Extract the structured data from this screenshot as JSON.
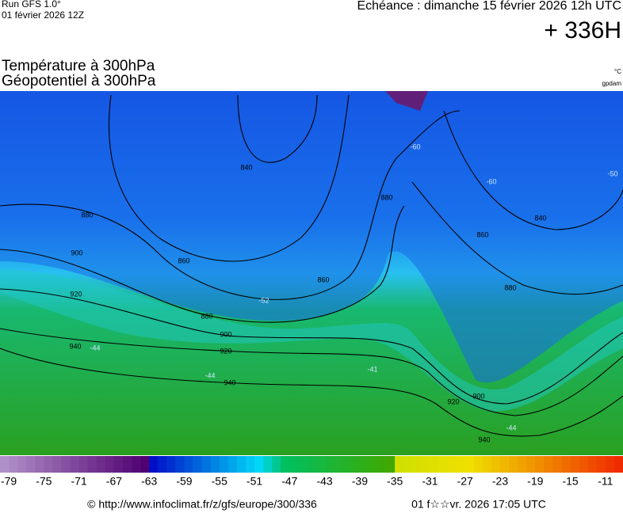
{
  "header": {
    "run": "Run GFS 1.0°",
    "run_date": "01 février 2026 12Z",
    "echeance": "Echéance : dimanche 15 février 2026 12h UTC",
    "lead": "+ 336H",
    "title_1": "Température à 300hPa",
    "title_2": "Géopotentiel à 300hPa",
    "unit_temp": "°C",
    "unit_geo": "gpdam"
  },
  "map": {
    "contour_labels": [
      880,
      900,
      920,
      940,
      860,
      880,
      900,
      920,
      940,
      860,
      880,
      860,
      840,
      900,
      920,
      940,
      840,
      880
    ],
    "temp_labels": [
      -52,
      -44,
      -41,
      -44,
      -60,
      -60,
      -50,
      -44
    ]
  },
  "colorbar": {
    "lim": [
      -80,
      -9
    ],
    "ticks": [
      -79,
      -75,
      -71,
      -67,
      -63,
      -59,
      -55,
      -51,
      -47,
      -43,
      -39,
      -35,
      -31,
      -27,
      -23,
      -19,
      -15,
      -11
    ],
    "color_stops": [
      [
        -80,
        "#b090c8"
      ],
      [
        -64,
        "#500070"
      ],
      [
        -63,
        "#0010c8"
      ],
      [
        -51,
        "#00d8f8"
      ],
      [
        -48,
        "#00c060"
      ],
      [
        -36,
        "#40a800"
      ],
      [
        -35,
        "#d0e000"
      ],
      [
        -27,
        "#f0e000"
      ],
      [
        -20,
        "#f09800"
      ],
      [
        -9,
        "#f02000"
      ]
    ]
  },
  "footer": {
    "url": "© http://www.infoclimat.fr/z/gfs/europe/300/336",
    "date": "01 f☆☆vr. 2026 17:05 UTC"
  }
}
